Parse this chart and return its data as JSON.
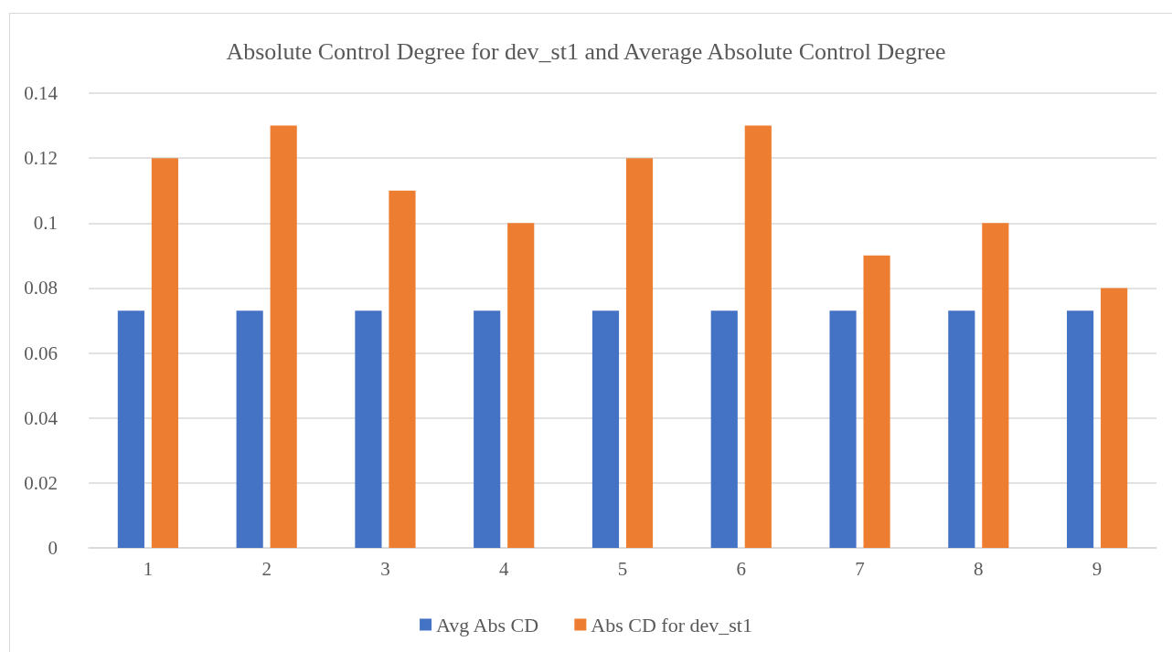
{
  "chart_data": {
    "type": "bar",
    "title": "Absolute Control Degree for dev_st1 and Average Absolute Control Degree",
    "categories": [
      "1",
      "2",
      "3",
      "4",
      "5",
      "6",
      "7",
      "8",
      "9"
    ],
    "series": [
      {
        "name": "Avg Abs CD",
        "color": "#4472c4",
        "values": [
          0.073,
          0.073,
          0.073,
          0.073,
          0.073,
          0.073,
          0.073,
          0.073,
          0.073
        ]
      },
      {
        "name": "Abs CD for dev_st1",
        "color": "#ed7d31",
        "values": [
          0.12,
          0.13,
          0.11,
          0.1,
          0.12,
          0.13,
          0.09,
          0.1,
          0.08
        ]
      }
    ],
    "ylim": [
      0,
      0.14
    ],
    "yticks": [
      0,
      0.02,
      0.04,
      0.06,
      0.08,
      0.1,
      0.12,
      0.14
    ],
    "grid": "y",
    "legend": "bottom"
  }
}
